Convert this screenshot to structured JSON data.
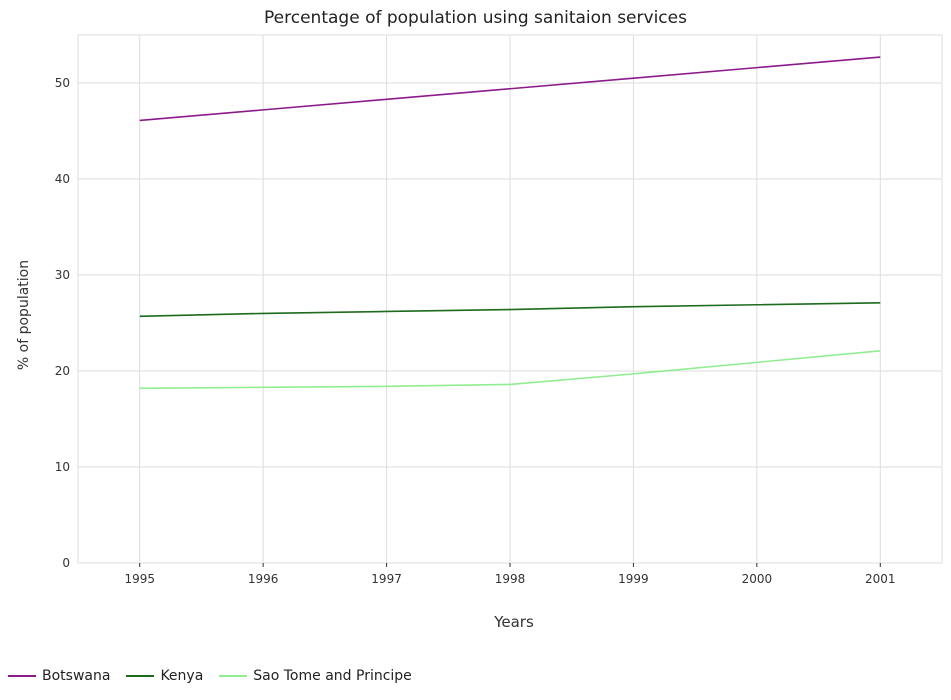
{
  "title": "Percentage of population using sanitaion services",
  "colors": {
    "Botswana": "#8b1a8b",
    "Kenya": "#1d6b1d",
    "Sao Tome and Principe": "#90ee90",
    "grid": "#dddddd",
    "axis": "#333333"
  },
  "chart_data": {
    "type": "line",
    "title": "Percentage of population using sanitaion services",
    "xlabel": "Years",
    "ylabel": "% of population",
    "x": [
      "1995",
      "1996",
      "1997",
      "1998",
      "1999",
      "2000",
      "2001"
    ],
    "ylim": [
      0,
      55
    ],
    "yticks": [
      0,
      10,
      20,
      30,
      40,
      50
    ],
    "grid": true,
    "legend_position": "bottom-left",
    "series": [
      {
        "name": "Botswana",
        "values": [
          46.1,
          47.2,
          48.3,
          49.4,
          50.5,
          51.6,
          52.7
        ]
      },
      {
        "name": "Kenya",
        "values": [
          25.7,
          26.0,
          26.2,
          26.4,
          26.7,
          26.9,
          27.1
        ]
      },
      {
        "name": "Sao Tome and Principe",
        "values": [
          18.2,
          18.3,
          18.4,
          18.6,
          19.7,
          20.9,
          22.1
        ]
      }
    ]
  }
}
